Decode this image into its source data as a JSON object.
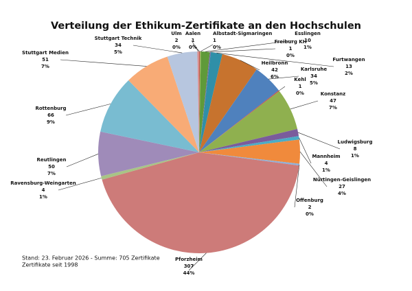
{
  "chart_data": {
    "type": "pie",
    "title": "Verteilung der Ethikum-Zertifikate an den Hochschulen",
    "notes": [
      "Stand: 23. Februar 2026 - Summe: 705 Zertifikate",
      "Zertifikate seit 1998"
    ],
    "categories": [
      "Aalen",
      "Albstadt-Sigmaringen",
      "Esslingen",
      "Freiburg KH",
      "Furtwangen",
      "Heilbronn",
      "Karlsruhe",
      "Kehl",
      "Konstanz",
      "Ludwigsburg",
      "Mannheim",
      "Nürtingen-Geislingen",
      "Offenburg",
      "Pforzheim",
      "Ravensburg-Weingarten",
      "Reutlingen",
      "Rottenburg",
      "Stuttgart Medien",
      "Stuttgart Technik",
      "Ulm"
    ],
    "values": [
      1,
      1,
      10,
      1,
      13,
      42,
      34,
      1,
      47,
      8,
      4,
      27,
      2,
      307,
      4,
      50,
      66,
      51,
      34,
      2
    ],
    "percent_labels": [
      "0%",
      "0%",
      "1%",
      "0%",
      "2%",
      "6%",
      "5%",
      "0%",
      "7%",
      "1%",
      "1%",
      "4%",
      "0%",
      "44%",
      "1%",
      "7%",
      "9%",
      "7%",
      "5%",
      "0%"
    ],
    "colors": [
      "#c0504d",
      "#9bbb59",
      "#5f9a3a",
      "#8064a2",
      "#2f8fa8",
      "#c7732e",
      "#4f81bd",
      "#c0504d",
      "#8fb04f",
      "#7a5c9c",
      "#4bacc6",
      "#f08a3c",
      "#8fb0d8",
      "#cd7b79",
      "#a8c485",
      "#9f8bb9",
      "#79bcd1",
      "#f8ab76",
      "#b7c6df",
      "#d8908f"
    ]
  }
}
